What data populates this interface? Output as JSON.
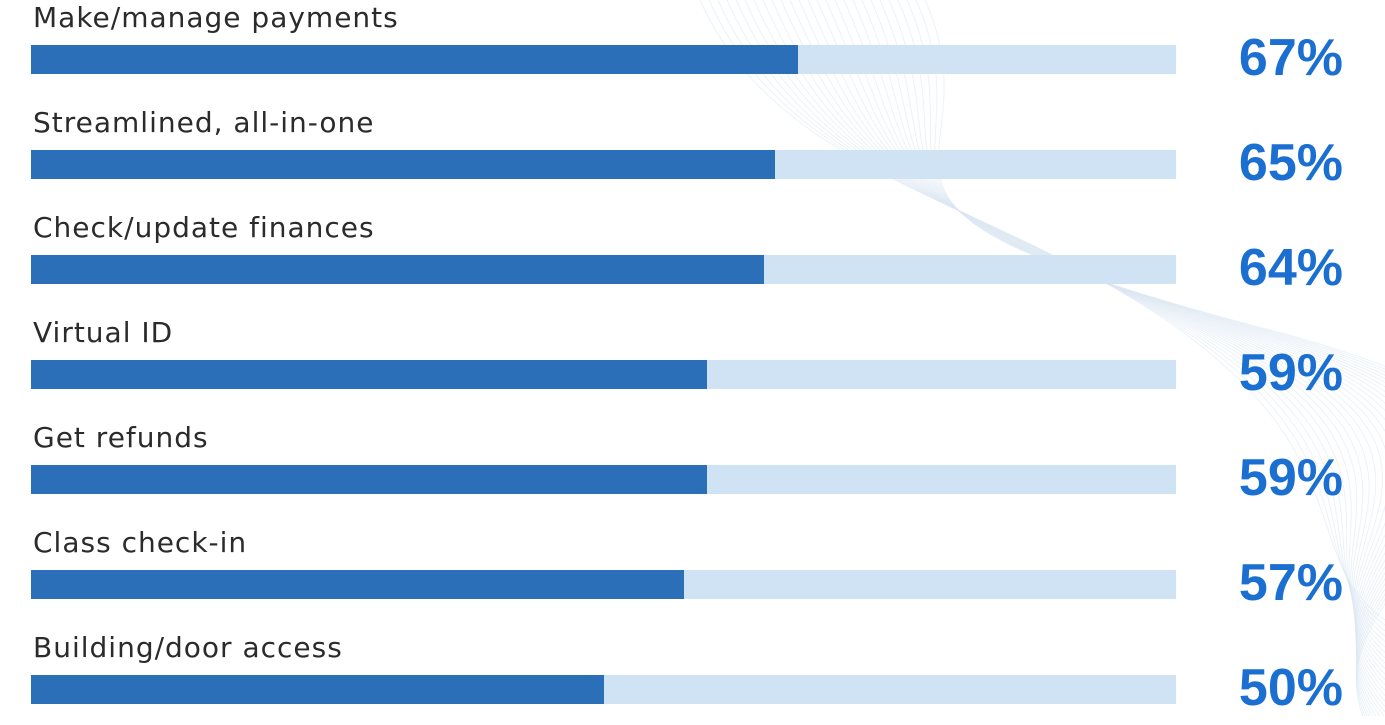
{
  "chart_data": {
    "type": "bar",
    "orientation": "horizontal",
    "categories": [
      "Make/manage payments",
      "Streamlined, all-in-one",
      "Check/update finances",
      "Virtual ID",
      "Get refunds",
      "Class check-in",
      "Building/door access"
    ],
    "values": [
      67,
      65,
      64,
      59,
      59,
      57,
      50
    ],
    "value_labels": [
      "67%",
      "65%",
      "64%",
      "59%",
      "59%",
      "57%",
      "50%"
    ],
    "xlim": [
      0,
      100
    ],
    "grid": false,
    "legend": "none"
  },
  "colors": {
    "fill": "#2a6fb8",
    "track": "#cfe3f5",
    "value_text": "#1a6fd1",
    "label_text": "#2b2b2b",
    "background": "#ffffff"
  }
}
